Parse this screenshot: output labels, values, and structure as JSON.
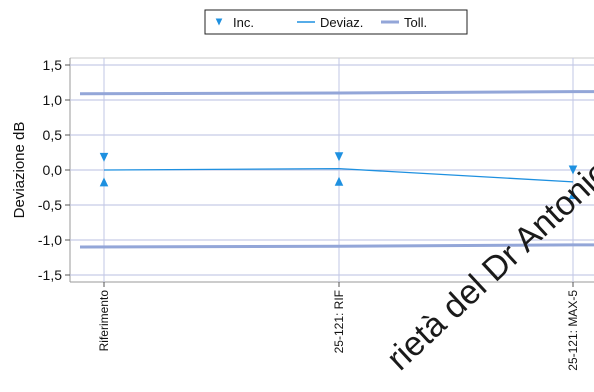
{
  "chart_data": {
    "type": "line",
    "title": "",
    "xlabel": "",
    "ylabel": "Deviazione dB",
    "ylim": [
      -1.6,
      1.6
    ],
    "grid": true,
    "legend_position": "top",
    "categories": [
      "Riferimento",
      "25-121: RIF",
      "25-121: MAX-5"
    ],
    "y_ticks": [
      "1,5",
      "1,0",
      "0,5",
      "0,0",
      "-0,5",
      "-1,0",
      "-1,5"
    ],
    "y_tick_values": [
      1.5,
      1.0,
      0.5,
      0.0,
      -0.5,
      -1.0,
      -1.5
    ],
    "series": [
      {
        "name": "Inc.",
        "marker": "triangle",
        "color": "#1e90e0",
        "upper": [
          0.18,
          0.19,
          0.0
        ],
        "lower": [
          -0.17,
          -0.16,
          -0.35
        ]
      },
      {
        "name": "Deviaz.",
        "color": "#1e90e0",
        "values": [
          0.0,
          0.02,
          -0.17
        ]
      },
      {
        "name": "Toll.",
        "color": "#93a6d8",
        "upper": [
          1.09,
          1.1,
          1.12
        ],
        "lower": [
          -1.1,
          -1.09,
          -1.07
        ]
      }
    ]
  },
  "watermark": "rietà del Dr Antonio"
}
